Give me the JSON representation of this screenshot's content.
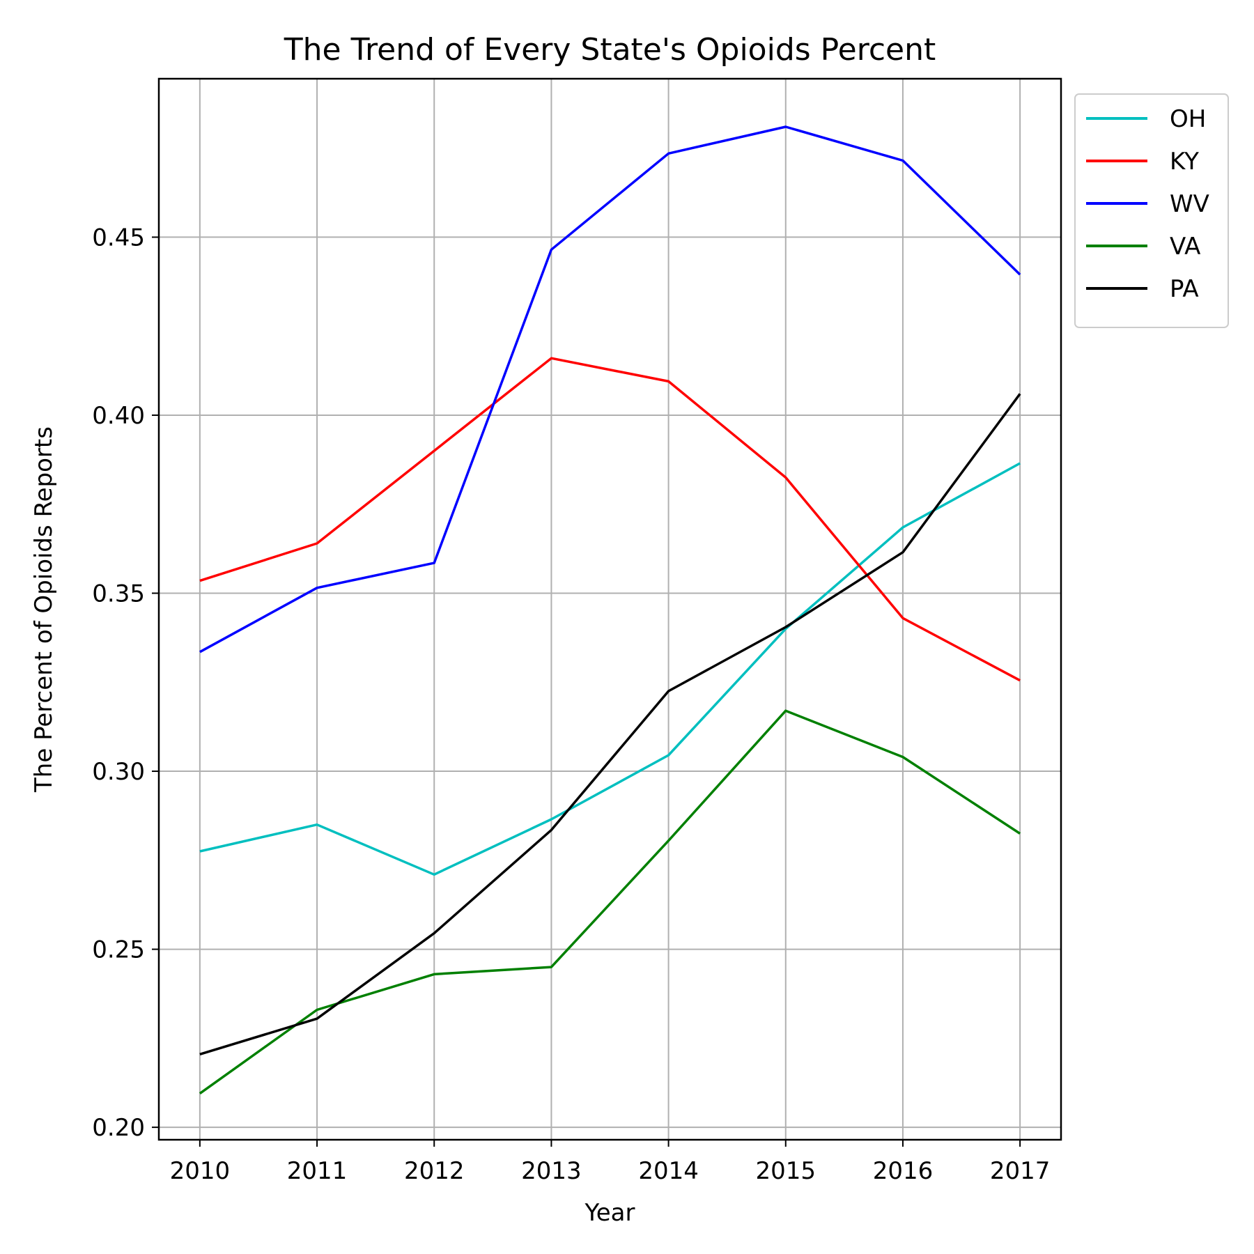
{
  "chart_data": {
    "type": "line",
    "title": "The Trend of Every State's Opioids Percent",
    "xlabel": "Year",
    "ylabel": "The Percent of Opioids Reports",
    "x": [
      2010,
      2011,
      2012,
      2013,
      2014,
      2015,
      2016,
      2017
    ],
    "x_tick_labels": [
      "2010",
      "2011",
      "2012",
      "2013",
      "2014",
      "2015",
      "2016",
      "2017"
    ],
    "xlim": [
      2009.65,
      2017.35
    ],
    "ylim": [
      0.1965,
      0.4945
    ],
    "y_ticks": [
      0.2,
      0.25,
      0.3,
      0.35,
      0.4,
      0.45
    ],
    "y_tick_labels": [
      "0.20",
      "0.25",
      "0.30",
      "0.35",
      "0.40",
      "0.45"
    ],
    "grid": true,
    "legend_position": "outside-top-right",
    "series": [
      {
        "name": "OH",
        "color": "#00bfbf",
        "values": [
          0.2775,
          0.285,
          0.271,
          0.2865,
          0.3045,
          0.34,
          0.3685,
          0.3865
        ]
      },
      {
        "name": "KY",
        "color": "#ff0000",
        "values": [
          0.3535,
          0.364,
          0.39,
          0.416,
          0.4095,
          0.3825,
          0.343,
          0.3255
        ]
      },
      {
        "name": "WV",
        "color": "#0000ff",
        "values": [
          0.3335,
          0.3515,
          0.3585,
          0.4465,
          0.4735,
          0.481,
          0.4715,
          0.4395
        ]
      },
      {
        "name": "VA",
        "color": "#008000",
        "values": [
          0.2095,
          0.233,
          0.243,
          0.245,
          0.2805,
          0.317,
          0.304,
          0.2825
        ]
      },
      {
        "name": "PA",
        "color": "#000000",
        "values": [
          0.2205,
          0.2305,
          0.2545,
          0.2835,
          0.3225,
          0.3405,
          0.3615,
          0.406
        ]
      }
    ]
  }
}
